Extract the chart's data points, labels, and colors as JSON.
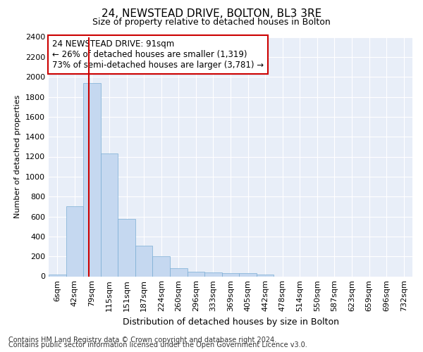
{
  "title1": "24, NEWSTEAD DRIVE, BOLTON, BL3 3RE",
  "title2": "Size of property relative to detached houses in Bolton",
  "xlabel": "Distribution of detached houses by size in Bolton",
  "ylabel": "Number of detached properties",
  "bar_categories": [
    "6sqm",
    "42sqm",
    "79sqm",
    "115sqm",
    "151sqm",
    "187sqm",
    "224sqm",
    "260sqm",
    "296sqm",
    "333sqm",
    "369sqm",
    "405sqm",
    "442sqm",
    "478sqm",
    "514sqm",
    "550sqm",
    "587sqm",
    "623sqm",
    "659sqm",
    "696sqm",
    "732sqm"
  ],
  "bar_values": [
    15,
    700,
    1940,
    1230,
    575,
    305,
    200,
    80,
    45,
    38,
    32,
    32,
    20,
    0,
    0,
    0,
    0,
    0,
    0,
    0,
    0
  ],
  "bar_color": "#c5d8f0",
  "bar_edge_color": "#7aadd4",
  "ylim": [
    0,
    2400
  ],
  "yticks": [
    0,
    200,
    400,
    600,
    800,
    1000,
    1200,
    1400,
    1600,
    1800,
    2000,
    2200,
    2400
  ],
  "annotation_line1": "24 NEWSTEAD DRIVE: 91sqm",
  "annotation_line2": "← 26% of detached houses are smaller (1,319)",
  "annotation_line3": "73% of semi-detached houses are larger (3,781) →",
  "red_line_color": "#cc0000",
  "annotation_box_edgecolor": "#cc0000",
  "plot_bg_color": "#e8eef8",
  "fig_bg_color": "#ffffff",
  "grid_color": "#ffffff",
  "footer1": "Contains HM Land Registry data © Crown copyright and database right 2024.",
  "footer2": "Contains public sector information licensed under the Open Government Licence v3.0.",
  "title1_fontsize": 11,
  "title2_fontsize": 9,
  "xlabel_fontsize": 9,
  "ylabel_fontsize": 8,
  "tick_fontsize": 8,
  "annot_fontsize": 8.5,
  "footer_fontsize": 7
}
